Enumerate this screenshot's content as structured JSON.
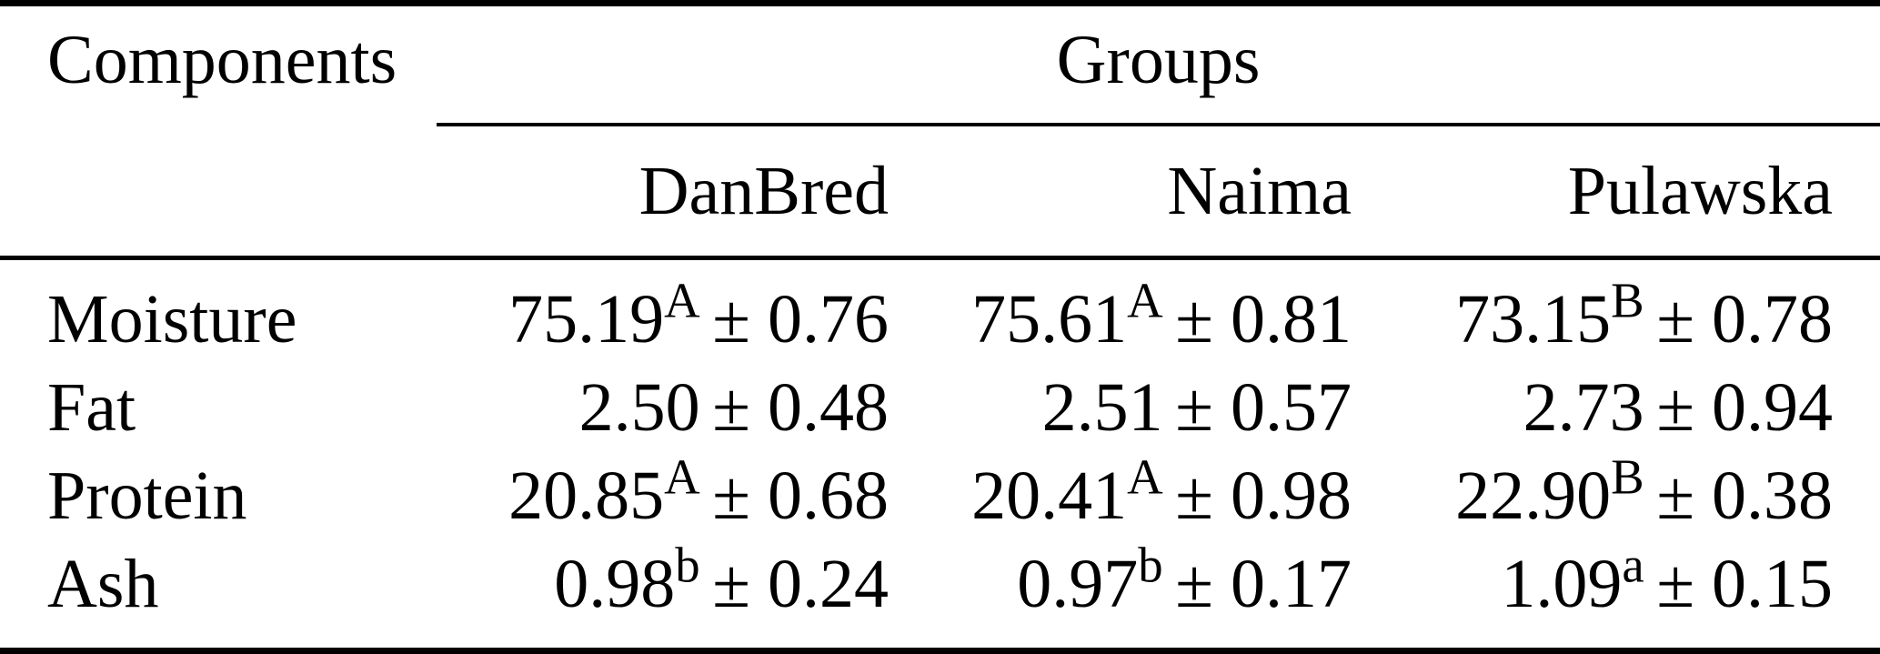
{
  "table": {
    "col1_header": "Components",
    "group_header": "Groups",
    "group_columns": [
      "DanBred",
      "Naima",
      "Pulawska"
    ],
    "rows": [
      {
        "label": "Moisture",
        "cells": [
          {
            "mean": "75.19",
            "sup": "A",
            "pm": "± 0.76"
          },
          {
            "mean": "75.61",
            "sup": "A",
            "pm": "± 0.81"
          },
          {
            "mean": "73.15",
            "sup": "B",
            "pm": "± 0.78"
          }
        ]
      },
      {
        "label": "Fat",
        "cells": [
          {
            "mean": "2.50",
            "sup": "",
            "pm": "± 0.48"
          },
          {
            "mean": "2.51",
            "sup": "",
            "pm": "± 0.57"
          },
          {
            "mean": "2.73",
            "sup": "",
            "pm": "± 0.94"
          }
        ]
      },
      {
        "label": "Protein",
        "cells": [
          {
            "mean": "20.85",
            "sup": "A",
            "pm": "± 0.68"
          },
          {
            "mean": "20.41",
            "sup": "A",
            "pm": "± 0.98"
          },
          {
            "mean": "22.90",
            "sup": "B",
            "pm": "± 0.38"
          }
        ]
      },
      {
        "label": "Ash",
        "cells": [
          {
            "mean": "0.98",
            "sup": "b",
            "pm": "± 0.24"
          },
          {
            "mean": "0.97",
            "sup": "b",
            "pm": "± 0.17"
          },
          {
            "mean": "1.09",
            "sup": "a",
            "pm": "± 0.15"
          }
        ]
      }
    ]
  },
  "colors": {
    "text": "#000000",
    "background": "#ffffff",
    "rule": "#000000"
  }
}
